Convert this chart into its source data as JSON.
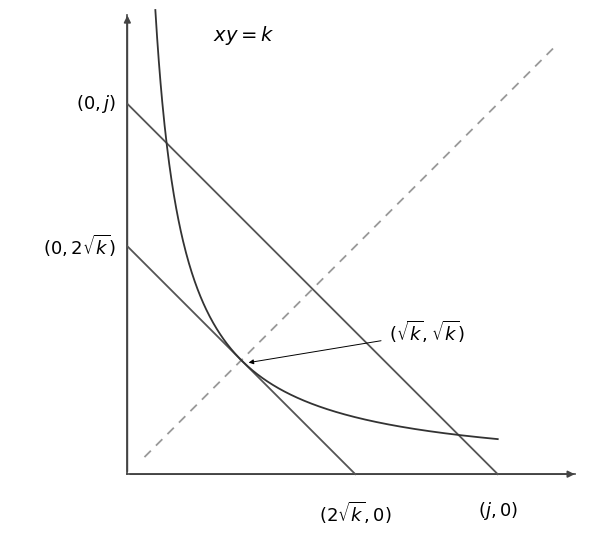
{
  "k": 4,
  "j": 6.5,
  "sqrt_k": 2.0,
  "two_sqrt_k": 4.0,
  "fig_width": 6.08,
  "fig_height": 5.38,
  "dpi": 100,
  "axis_color": "#444444",
  "line_color": "#555555",
  "dashed_color": "#999999",
  "curve_color": "#333333",
  "bg_color": "#ffffff",
  "label_xy_k": "$xy = k$",
  "label_0j": "$(0, j)$",
  "label_02sqrtk": "$(0, 2\\sqrt{k})$",
  "label_sqrtk_sqrtk": "$(\\sqrt{k}, \\sqrt{k})$",
  "label_2sqrtk_0": "$(2\\sqrt{k}, 0)$",
  "label_j_0": "$(j, 0)$",
  "fontsize": 13
}
